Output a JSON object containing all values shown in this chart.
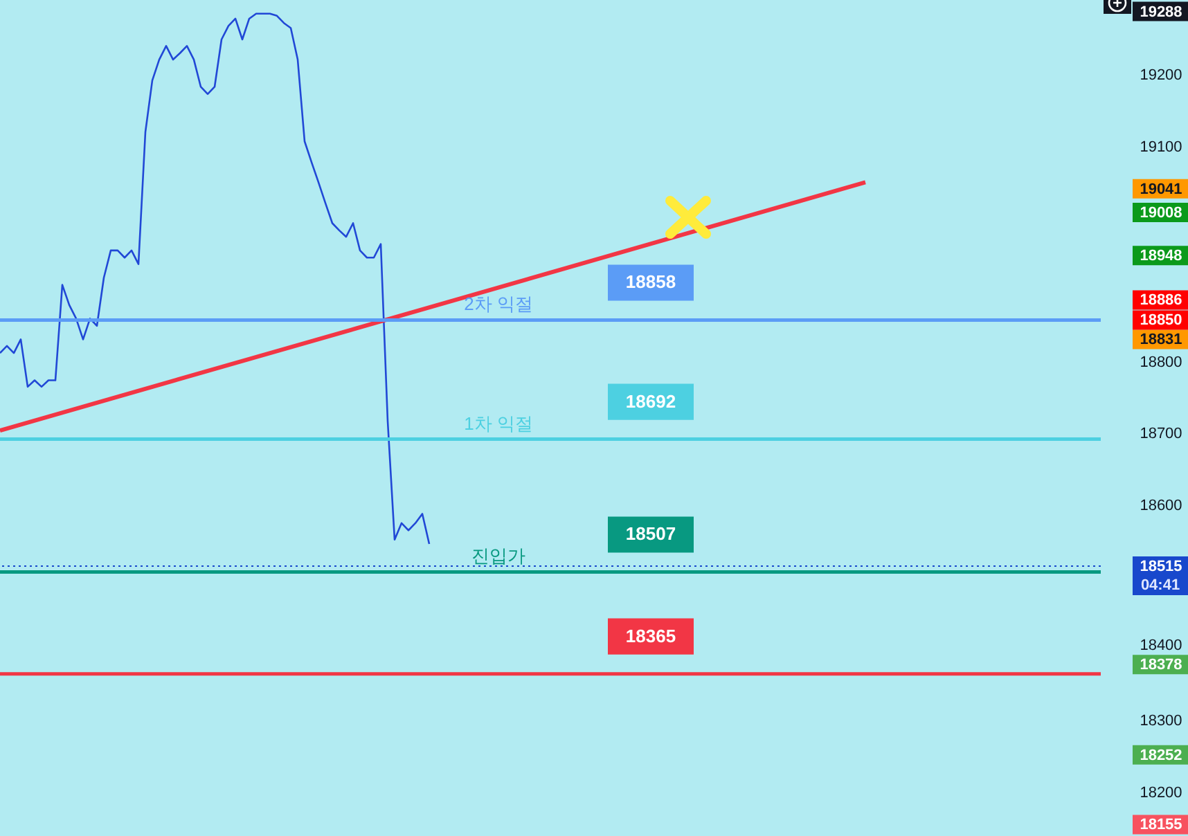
{
  "chart_data": {
    "type": "line",
    "tick_labels": "y",
    "grid": false,
    "marker": "none",
    "ylim": [
      18139,
      19304
    ],
    "yticks": [
      18155,
      18200,
      18252,
      18300,
      18378,
      18400,
      18515,
      18600,
      18700,
      18800,
      18831,
      18850,
      18886,
      18948,
      19008,
      19041,
      19100,
      19200,
      19288
    ],
    "categories": [
      null,
      null,
      null,
      null,
      null,
      null,
      null,
      null,
      null,
      null,
      null,
      null,
      null,
      null,
      null,
      null,
      null,
      null,
      null,
      null,
      null,
      null,
      null,
      null,
      null,
      null,
      null,
      null,
      null,
      null,
      null,
      null,
      null,
      null,
      null,
      null,
      null,
      null,
      null,
      null,
      null,
      null,
      null,
      null,
      null,
      null,
      null,
      null,
      null,
      null,
      null,
      null,
      null,
      null,
      null,
      null,
      null,
      null,
      null,
      null,
      null,
      null,
      null,
      null,
      null,
      null,
      null,
      null,
      null,
      null,
      null,
      null,
      null,
      null,
      null,
      null,
      null,
      null,
      null,
      null,
      null,
      null,
      null,
      null,
      null,
      null,
      null,
      null,
      null,
      null,
      null,
      null,
      null,
      null,
      null,
      null,
      null,
      null,
      null,
      null,
      null,
      null,
      null,
      null,
      null,
      null,
      null,
      null,
      null,
      null,
      null,
      null,
      null,
      null,
      null,
      null,
      null,
      null,
      null,
      null,
      null,
      null,
      null,
      null,
      null,
      null,
      null,
      null,
      null,
      null,
      null,
      null,
      null,
      null,
      null,
      null,
      null,
      null,
      null,
      null,
      null,
      null,
      null,
      null,
      null,
      null,
      null,
      null,
      null,
      null,
      null,
      null,
      null,
      null,
      null,
      null,
      null,
      null,
      null,
      null
    ],
    "series": [
      {
        "color": "#2148d6",
        "values": [
          18812,
          18822,
          18812,
          18831,
          18765,
          18774,
          18765,
          18774,
          18774,
          18907,
          18879,
          18860,
          18831,
          18860,
          18850,
          18917,
          18955,
          18955,
          18945,
          18955,
          18936,
          19120,
          19192,
          19221,
          19240,
          19221,
          19230,
          19240,
          19221,
          19183,
          19173,
          19183,
          19249,
          19268,
          19278,
          19249,
          19278,
          19285,
          19285,
          19285,
          19282,
          19272,
          19265,
          19221,
          19107,
          19078,
          19050,
          19021,
          18993,
          18983,
          18974,
          18993,
          18955,
          18945,
          18945,
          18964,
          18717,
          18552,
          18575,
          18565,
          18575,
          18588,
          18546,
          null,
          null,
          null,
          null,
          null,
          null,
          null,
          null,
          null,
          null,
          null,
          null,
          null,
          null,
          null,
          null,
          null,
          null,
          null,
          null,
          null,
          null,
          null,
          null,
          null,
          null,
          null,
          null,
          null,
          null,
          null,
          null,
          null,
          null,
          null,
          null,
          null,
          null,
          null,
          null,
          null,
          null,
          null,
          null,
          null,
          null,
          null,
          null,
          null,
          null,
          null,
          null,
          null,
          null,
          null,
          null,
          null,
          null,
          null,
          null,
          null,
          null,
          null,
          null,
          null,
          null,
          null,
          null,
          null,
          null,
          null,
          null,
          null,
          null,
          null,
          null,
          null,
          null,
          null,
          null,
          null,
          null,
          null,
          null,
          null,
          null,
          null,
          null,
          null,
          null,
          null,
          null,
          null,
          null,
          null,
          null,
          null
        ]
      },
      {
        "color": "#f23645",
        "values": [
          18704,
          null,
          null,
          null,
          null,
          null,
          null,
          null,
          null,
          null,
          null,
          null,
          null,
          null,
          null,
          null,
          null,
          null,
          null,
          null,
          null,
          null,
          null,
          null,
          null,
          null,
          null,
          null,
          null,
          null,
          null,
          null,
          null,
          null,
          null,
          null,
          null,
          null,
          null,
          null,
          null,
          null,
          null,
          null,
          null,
          null,
          null,
          null,
          null,
          null,
          null,
          null,
          null,
          null,
          null,
          null,
          null,
          null,
          null,
          null,
          null,
          null,
          null,
          null,
          null,
          null,
          null,
          null,
          null,
          null,
          null,
          null,
          null,
          null,
          null,
          null,
          null,
          null,
          null,
          null,
          null,
          null,
          null,
          null,
          null,
          null,
          null,
          null,
          null,
          null,
          null,
          null,
          null,
          null,
          null,
          null,
          null,
          null,
          null,
          null,
          null,
          null,
          null,
          null,
          null,
          null,
          null,
          null,
          null,
          null,
          null,
          null,
          null,
          null,
          null,
          null,
          null,
          null,
          null,
          null,
          null,
          null,
          null,
          null,
          null,
          19050,
          null,
          null,
          null,
          null,
          null,
          null,
          null,
          null,
          null,
          null,
          null,
          null,
          null,
          null,
          null,
          null,
          null,
          null,
          null,
          null,
          null,
          null,
          null,
          null,
          null,
          null,
          null,
          null,
          null,
          null,
          null,
          null,
          null,
          null
        ]
      }
    ],
    "ref_lines": [
      {
        "axis": "y",
        "value": 18858,
        "label": "2차 익절",
        "color": "#5b9cf6"
      },
      {
        "axis": "y",
        "value": 18692,
        "label": "1차 익절",
        "color": "#4dd0e1"
      },
      {
        "axis": "y",
        "value": 18507,
        "label": "진입가",
        "color": "#089981"
      },
      {
        "axis": "y",
        "value": 18365,
        "label": null,
        "color": "#f23645"
      },
      {
        "axis": "y",
        "value": 18515,
        "label": null,
        "color": "#1848cc",
        "line_style": "dotted"
      }
    ],
    "annotations": [
      {
        "text": "18858",
        "y": 18858
      },
      {
        "text": "18692",
        "y": 18692
      },
      {
        "text": "18507",
        "y": 18507
      },
      {
        "text": "18365",
        "y": 18365
      },
      "04:41"
    ]
  }
}
